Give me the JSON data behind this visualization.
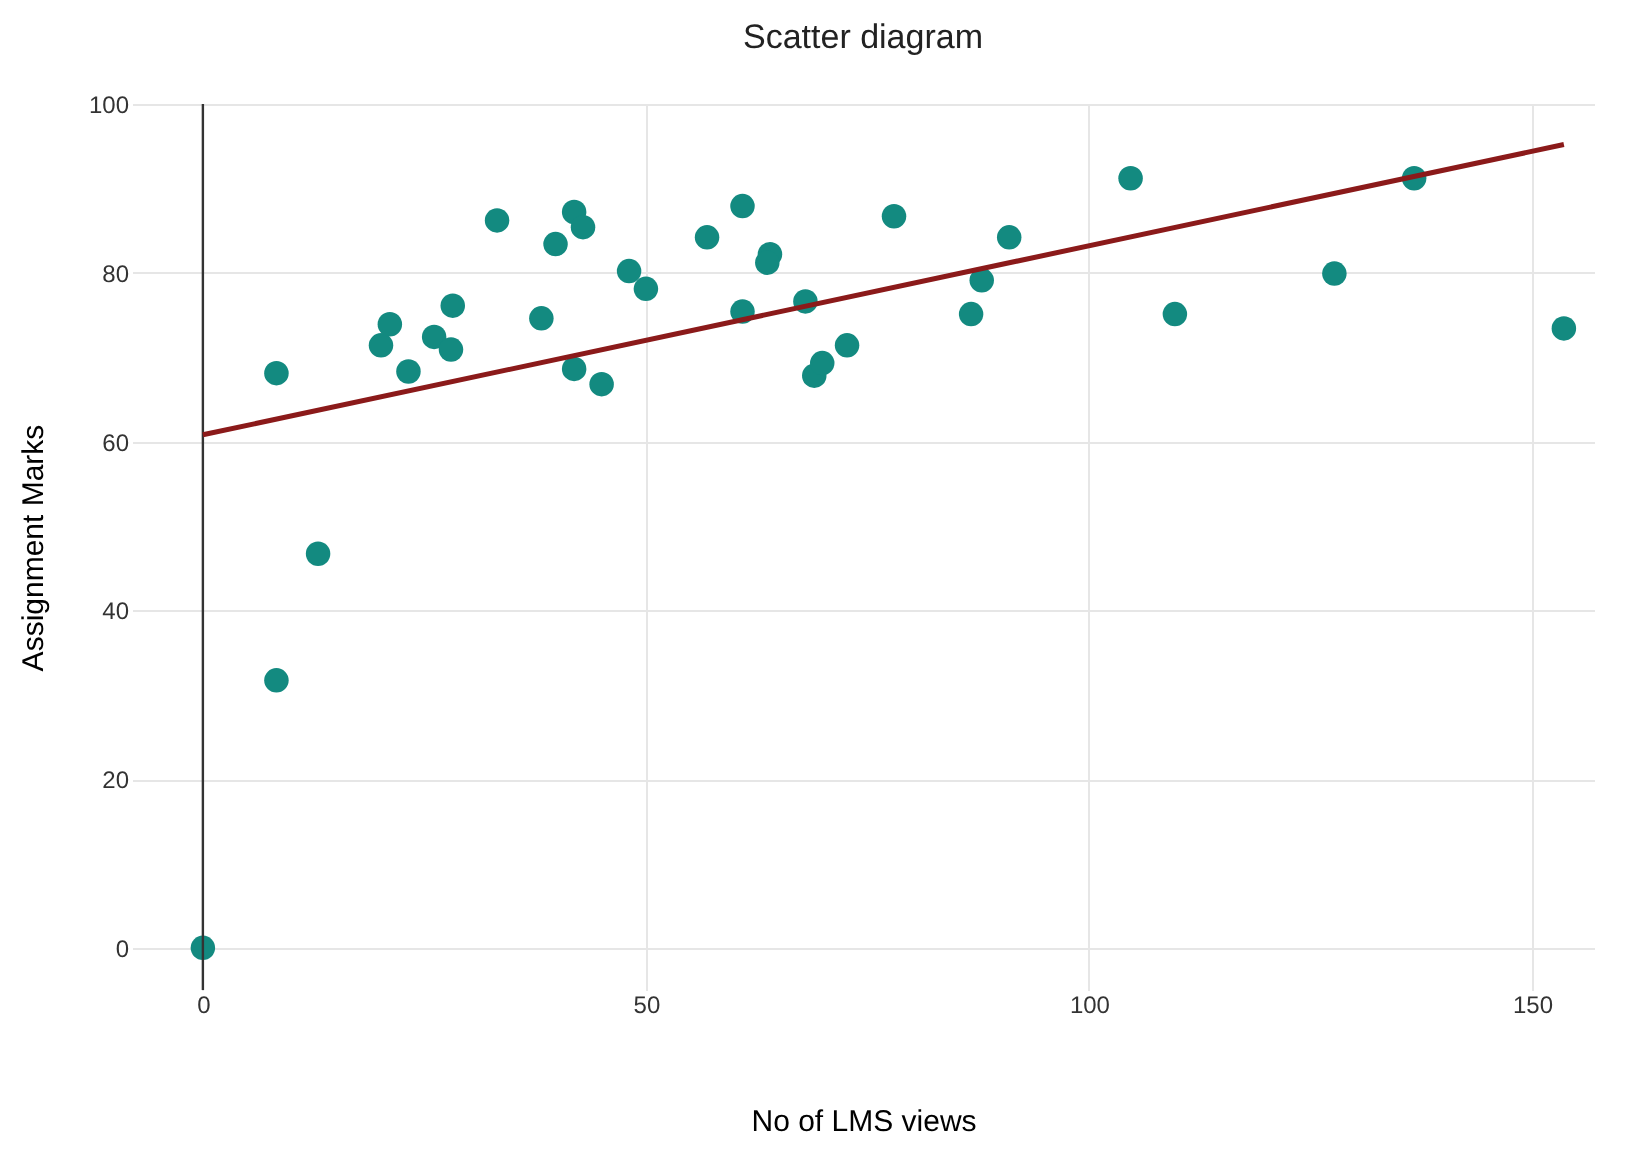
{
  "chart_data": {
    "type": "scatter",
    "title": "Scatter diagram",
    "xlabel": "No of LMS views",
    "ylabel": "Assignment Marks",
    "xlim": [
      -8,
      157
    ],
    "xticks": [
      0,
      50,
      100,
      150
    ],
    "ylim": [
      -5,
      100
    ],
    "yticks": [
      0,
      20,
      40,
      60,
      80,
      100
    ],
    "grid": true,
    "marker": "circle",
    "series": [
      {
        "color": "#138a80",
        "x": [
          0,
          8.3,
          8.3,
          13.0,
          20.1,
          21.1,
          23.2,
          26.1,
          28.2,
          28.0,
          33.2,
          38.2,
          39.8,
          41.9,
          42.9,
          41.9,
          45.0,
          48.1,
          50.0,
          56.9,
          60.9,
          60.9,
          64.0,
          63.7,
          68.0,
          69.0,
          69.9,
          72.7,
          78.0,
          86.7,
          87.9,
          91.0,
          104.7,
          109.7,
          127.7,
          136.7,
          153.6
        ],
        "values": [
          0,
          68.1,
          31.7,
          46.7,
          71.4,
          73.9,
          68.3,
          72.4,
          76.1,
          70.9,
          86.2,
          74.6,
          83.4,
          87.2,
          85.4,
          68.6,
          66.8,
          80.2,
          78.1,
          84.2,
          87.9,
          75.4,
          82.2,
          81.2,
          76.6,
          67.8,
          69.3,
          71.4,
          86.7,
          75.1,
          79.1,
          84.2,
          91.2,
          75.1,
          79.9,
          91.2,
          73.4
        ]
      },
      {
        "type": "line",
        "color": "#8b1a1a",
        "line_style": "solid",
        "marker": "none",
        "x": [
          0,
          153.6
        ],
        "values": [
          60.8,
          95.2
        ]
      }
    ],
    "ref_lines": [
      {
        "axis": "x",
        "value": 0,
        "color": "#333333"
      }
    ]
  }
}
